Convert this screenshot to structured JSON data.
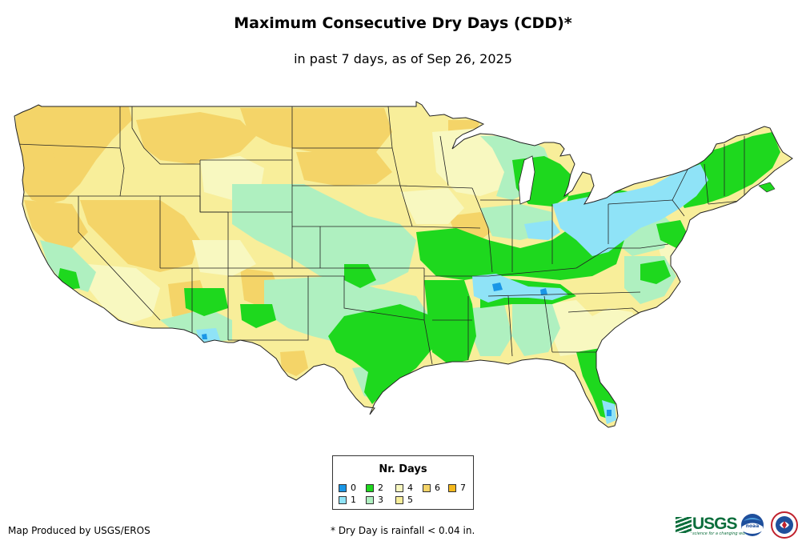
{
  "title": "Maximum Consecutive Dry Days (CDD)*",
  "subtitle": "in past 7 days, as of Sep 26, 2025",
  "legend": {
    "title": "Nr. Days",
    "items": [
      {
        "label": "0",
        "color": "#1a96e6"
      },
      {
        "label": "1",
        "color": "#8fe3f7"
      },
      {
        "label": "2",
        "color": "#1ed81e"
      },
      {
        "label": "3",
        "color": "#aff0c0"
      },
      {
        "label": "4",
        "color": "#f8f8c0"
      },
      {
        "label": "5",
        "color": "#f8ee9a"
      },
      {
        "label": "6",
        "color": "#f4d468"
      },
      {
        "label": "7",
        "color": "#f4b81c"
      }
    ]
  },
  "credit": "Map Produced by USGS/EROS",
  "footnote": "* Dry Day is rainfall < 0.04 in.",
  "logos": {
    "usgs": "USGS",
    "usgs_tagline": "science for a changing world",
    "noaa": "noaa",
    "nws": "NATIONAL WEATHER SERVICE"
  }
}
